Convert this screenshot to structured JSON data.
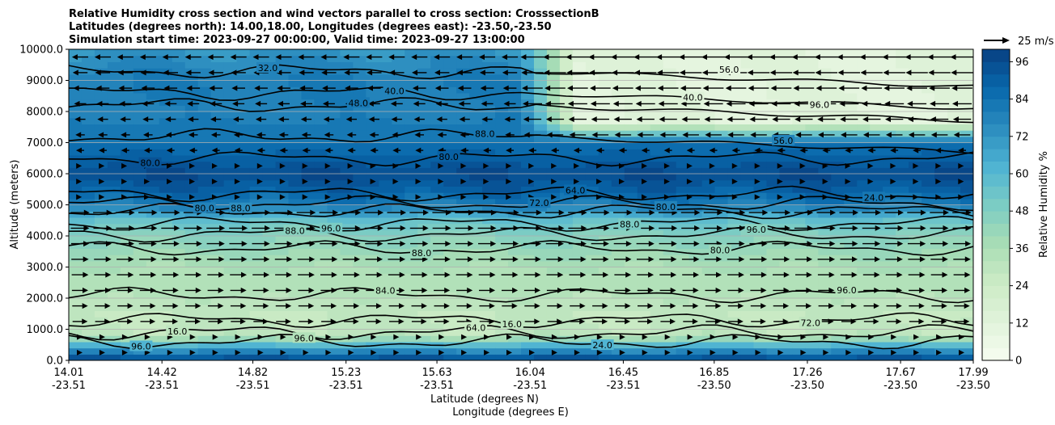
{
  "chart_data": {
    "type": "contour",
    "title_lines": [
      "Relative Humidity cross section and wind vectors parallel to cross section: CrosssectionB",
      "Latitudes (degrees north): 14.00,18.00, Longitudes (degrees east): -23.50,-23.50",
      "Simulation start time: 2023-09-27 00:00:00, Valid time: 2023-09-27 13:00:00"
    ],
    "ylabel": "Altitude (meters)",
    "xlabel_lat": "Latitude (degrees N)",
    "xlabel_lon": "Longitude (degrees E)",
    "y_ticks": [
      "0.0",
      "1000.0",
      "2000.0",
      "3000.0",
      "4000.0",
      "5000.0",
      "6000.0",
      "7000.0",
      "8000.0",
      "9000.0",
      "10000.0"
    ],
    "ylim": [
      0,
      10000
    ],
    "x_ticks": [
      {
        "lat": "14.01",
        "lon": "-23.51"
      },
      {
        "lat": "14.42",
        "lon": "-23.51"
      },
      {
        "lat": "14.82",
        "lon": "-23.51"
      },
      {
        "lat": "15.23",
        "lon": "-23.51"
      },
      {
        "lat": "15.63",
        "lon": "-23.51"
      },
      {
        "lat": "16.04",
        "lon": "-23.51"
      },
      {
        "lat": "16.45",
        "lon": "-23.51"
      },
      {
        "lat": "16.85",
        "lon": "-23.50"
      },
      {
        "lat": "17.26",
        "lon": "-23.50"
      },
      {
        "lat": "17.67",
        "lon": "-23.50"
      },
      {
        "lat": "17.99",
        "lon": "-23.50"
      }
    ],
    "xlim": [
      14.01,
      17.99
    ],
    "grid_horizontal": true,
    "colorbar": {
      "label": "Relative Humidity %",
      "ticks": [
        "0",
        "12",
        "24",
        "36",
        "48",
        "60",
        "72",
        "84",
        "96"
      ],
      "range": [
        0,
        100
      ],
      "colormap": "GnBu"
    },
    "quiver_key": {
      "label": "25 m/s"
    },
    "contour_labels": [
      "96.0",
      "64.0",
      "72.0",
      "84.0",
      "80.0",
      "88.0",
      "88.0",
      "80.0",
      "72.0",
      "24.0",
      "80.0",
      "56.0",
      "48.0",
      "40.0",
      "32.0",
      "24.0",
      "16.0",
      "16.0",
      "96.0",
      "88.0",
      "96.0",
      "96.0",
      "80.0",
      "88.0",
      "64.0",
      "80.0",
      "88.0",
      "96.0",
      "40.0",
      "56.0",
      "96.0"
    ],
    "rh_layers": [
      {
        "altitude": 0,
        "rh": 98
      },
      {
        "altitude": 400,
        "rh": 70
      },
      {
        "altitude": 800,
        "rh": 30
      },
      {
        "altitude": 1500,
        "rh": 28
      },
      {
        "altitude": 2000,
        "rh": 32
      },
      {
        "altitude": 3000,
        "rh": 36
      },
      {
        "altitude": 4000,
        "rh": 46
      },
      {
        "altitude": 4500,
        "rh": 56
      },
      {
        "altitude": 5000,
        "rh": 80
      },
      {
        "altitude": 5500,
        "rh": 90
      },
      {
        "altitude": 6000,
        "rh": 96
      },
      {
        "altitude": 7000,
        "rh": 84
      },
      {
        "altitude": 8000,
        "rh": 78
      },
      {
        "altitude": 9000,
        "rh": 80
      },
      {
        "altitude": 10000,
        "rh": 72
      }
    ],
    "dry_region": {
      "lat_start": 16.0,
      "altitude_start": 7000,
      "rh": 12
    },
    "contour_levels": [
      {
        "altitude": 600,
        "rh": 96
      },
      {
        "altitude": 900,
        "rh": 64
      },
      {
        "altitude": 1300,
        "rh": 24
      },
      {
        "altitude": 2100,
        "rh": 32
      },
      {
        "altitude": 3600,
        "rh": 40
      },
      {
        "altitude": 4050,
        "rh": 48
      },
      {
        "altitude": 4400,
        "rh": 56
      },
      {
        "altitude": 4800,
        "rh": 72
      },
      {
        "altitude": 5050,
        "rh": 80
      },
      {
        "altitude": 5350,
        "rh": 88
      },
      {
        "altitude": 6500,
        "rh": 88
      },
      {
        "altitude": 7200,
        "rh": 80
      },
      {
        "altitude": 8200,
        "rh": 72
      },
      {
        "altitude": 8600,
        "rh": 88
      },
      {
        "altitude": 9300,
        "rh": 80
      }
    ]
  }
}
